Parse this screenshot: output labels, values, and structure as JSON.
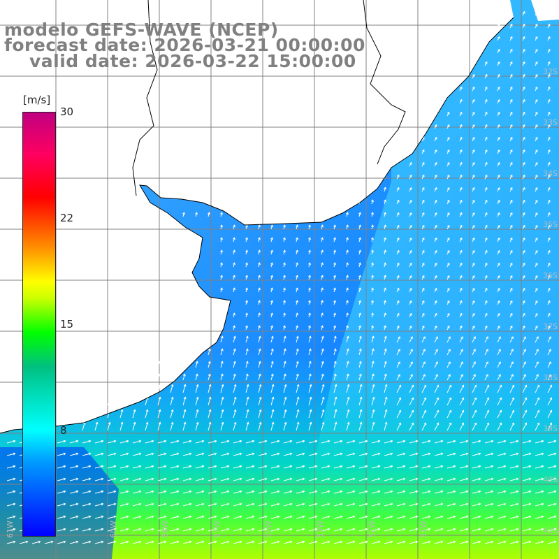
{
  "header": {
    "model_line": "modelo GEFS-WAVE (NCEP)",
    "forecast_line": "forecast date: 2026-03-21 00:00:00",
    "valid_line": "valid date: 2026-03-22 15:00:00"
  },
  "colorbar": {
    "units": "[m/s]",
    "ticks": [
      "30",
      "22",
      "15",
      "8"
    ],
    "tick_values": [
      30,
      22,
      15,
      8
    ],
    "min": 0,
    "max": 30,
    "colors": [
      "#0000ff",
      "#00a0ff",
      "#00ffff",
      "#00c080",
      "#00ff00",
      "#c8ff00",
      "#ffff00",
      "#ff9000",
      "#ff0000",
      "#ff0060",
      "#c00080"
    ]
  },
  "lat_labels": [
    "32S",
    "33S",
    "34S",
    "35S",
    "36S",
    "37S",
    "38S",
    "39S",
    "40S",
    "41S"
  ],
  "lon_labels": [
    "61W",
    "60W",
    "58W",
    "57W",
    "55W",
    "53W",
    "52W",
    "51W"
  ],
  "map": {
    "grid_color": "#888888",
    "coast_color": "#000000",
    "arrow_color": "#ffffff",
    "land_color": "#ffffff"
  }
}
